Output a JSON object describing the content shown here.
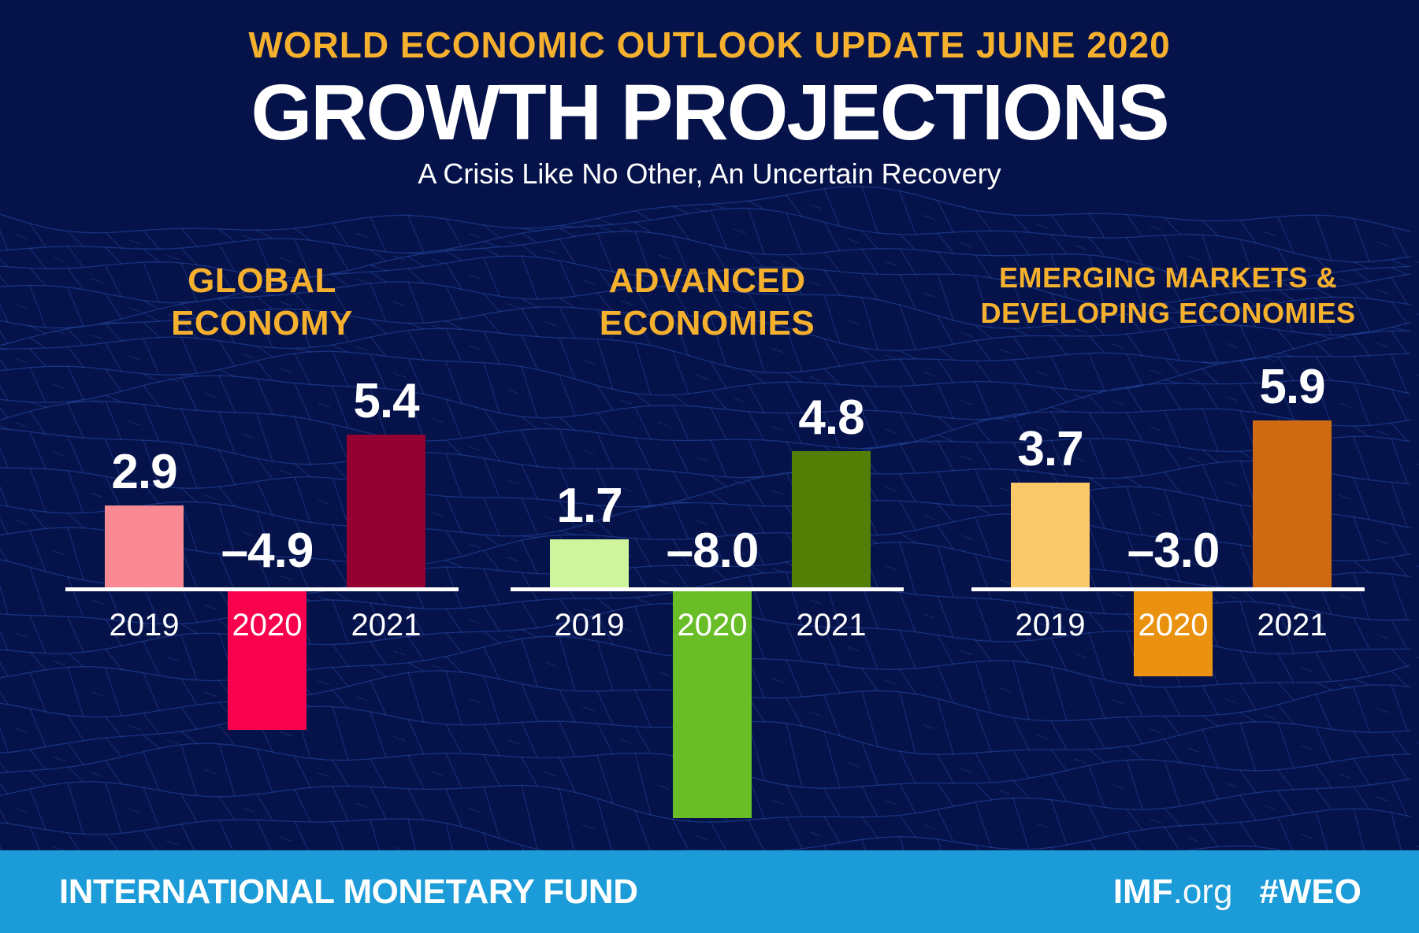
{
  "poster": {
    "kicker": "WORLD ECONOMIC OUTLOOK UPDATE JUNE 2020",
    "title": "GROWTH PROJECTIONS",
    "subtitle": "A Crisis Like No Other, An Uncertain Recovery"
  },
  "chart_data": {
    "type": "bar",
    "unit": "percent change (real GDP growth)",
    "categories": [
      "2019",
      "2020",
      "2021"
    ],
    "ylim": [
      -8.5,
      6.5
    ],
    "grid": false,
    "legend": "none",
    "baseline": 0,
    "baseline_color": "#FFFFFF",
    "value_label_color": "#FFFFFF",
    "groups": [
      {
        "label": "GLOBAL ECONOMY",
        "label_lines": [
          "GLOBAL",
          "ECONOMY"
        ],
        "series": [
          {
            "year": "2019",
            "value": 2.9,
            "display": "2.9",
            "color": "#F98A94"
          },
          {
            "year": "2020",
            "value": -4.9,
            "display": "–4.9",
            "color": "#F8024E"
          },
          {
            "year": "2021",
            "value": 5.4,
            "display": "5.4",
            "color": "#930031"
          }
        ]
      },
      {
        "label": "ADVANCED ECONOMIES",
        "label_lines": [
          "ADVANCED",
          "ECONOMIES"
        ],
        "series": [
          {
            "year": "2019",
            "value": 1.7,
            "display": "1.7",
            "color": "#CFF49B"
          },
          {
            "year": "2020",
            "value": -8.0,
            "display": "–8.0",
            "color": "#69BE28"
          },
          {
            "year": "2021",
            "value": 4.8,
            "display": "4.8",
            "color": "#537F06"
          }
        ]
      },
      {
        "label": "EMERGING MARKETS & DEVELOPING ECONOMIES",
        "label_lines": [
          "EMERGING MARKETS &",
          "DEVELOPING ECONOMIES"
        ],
        "series": [
          {
            "year": "2019",
            "value": 3.7,
            "display": "3.7",
            "color": "#F9C868"
          },
          {
            "year": "2020",
            "value": -3.0,
            "display": "–3.0",
            "color": "#EA9210"
          },
          {
            "year": "2021",
            "value": 5.9,
            "display": "5.9",
            "color": "#D06A12"
          }
        ]
      }
    ]
  },
  "footer": {
    "org": "INTERNATIONAL MONETARY FUND",
    "site_bold": "IMF",
    "site_suffix": ".org",
    "hashtag": "#WEO"
  },
  "colors": {
    "background": "#06134A",
    "mesh_line": "#2A52B2",
    "accent_gold": "#F5B02E",
    "footer_bg": "#1B9BD7",
    "text_white": "#FFFFFF"
  }
}
